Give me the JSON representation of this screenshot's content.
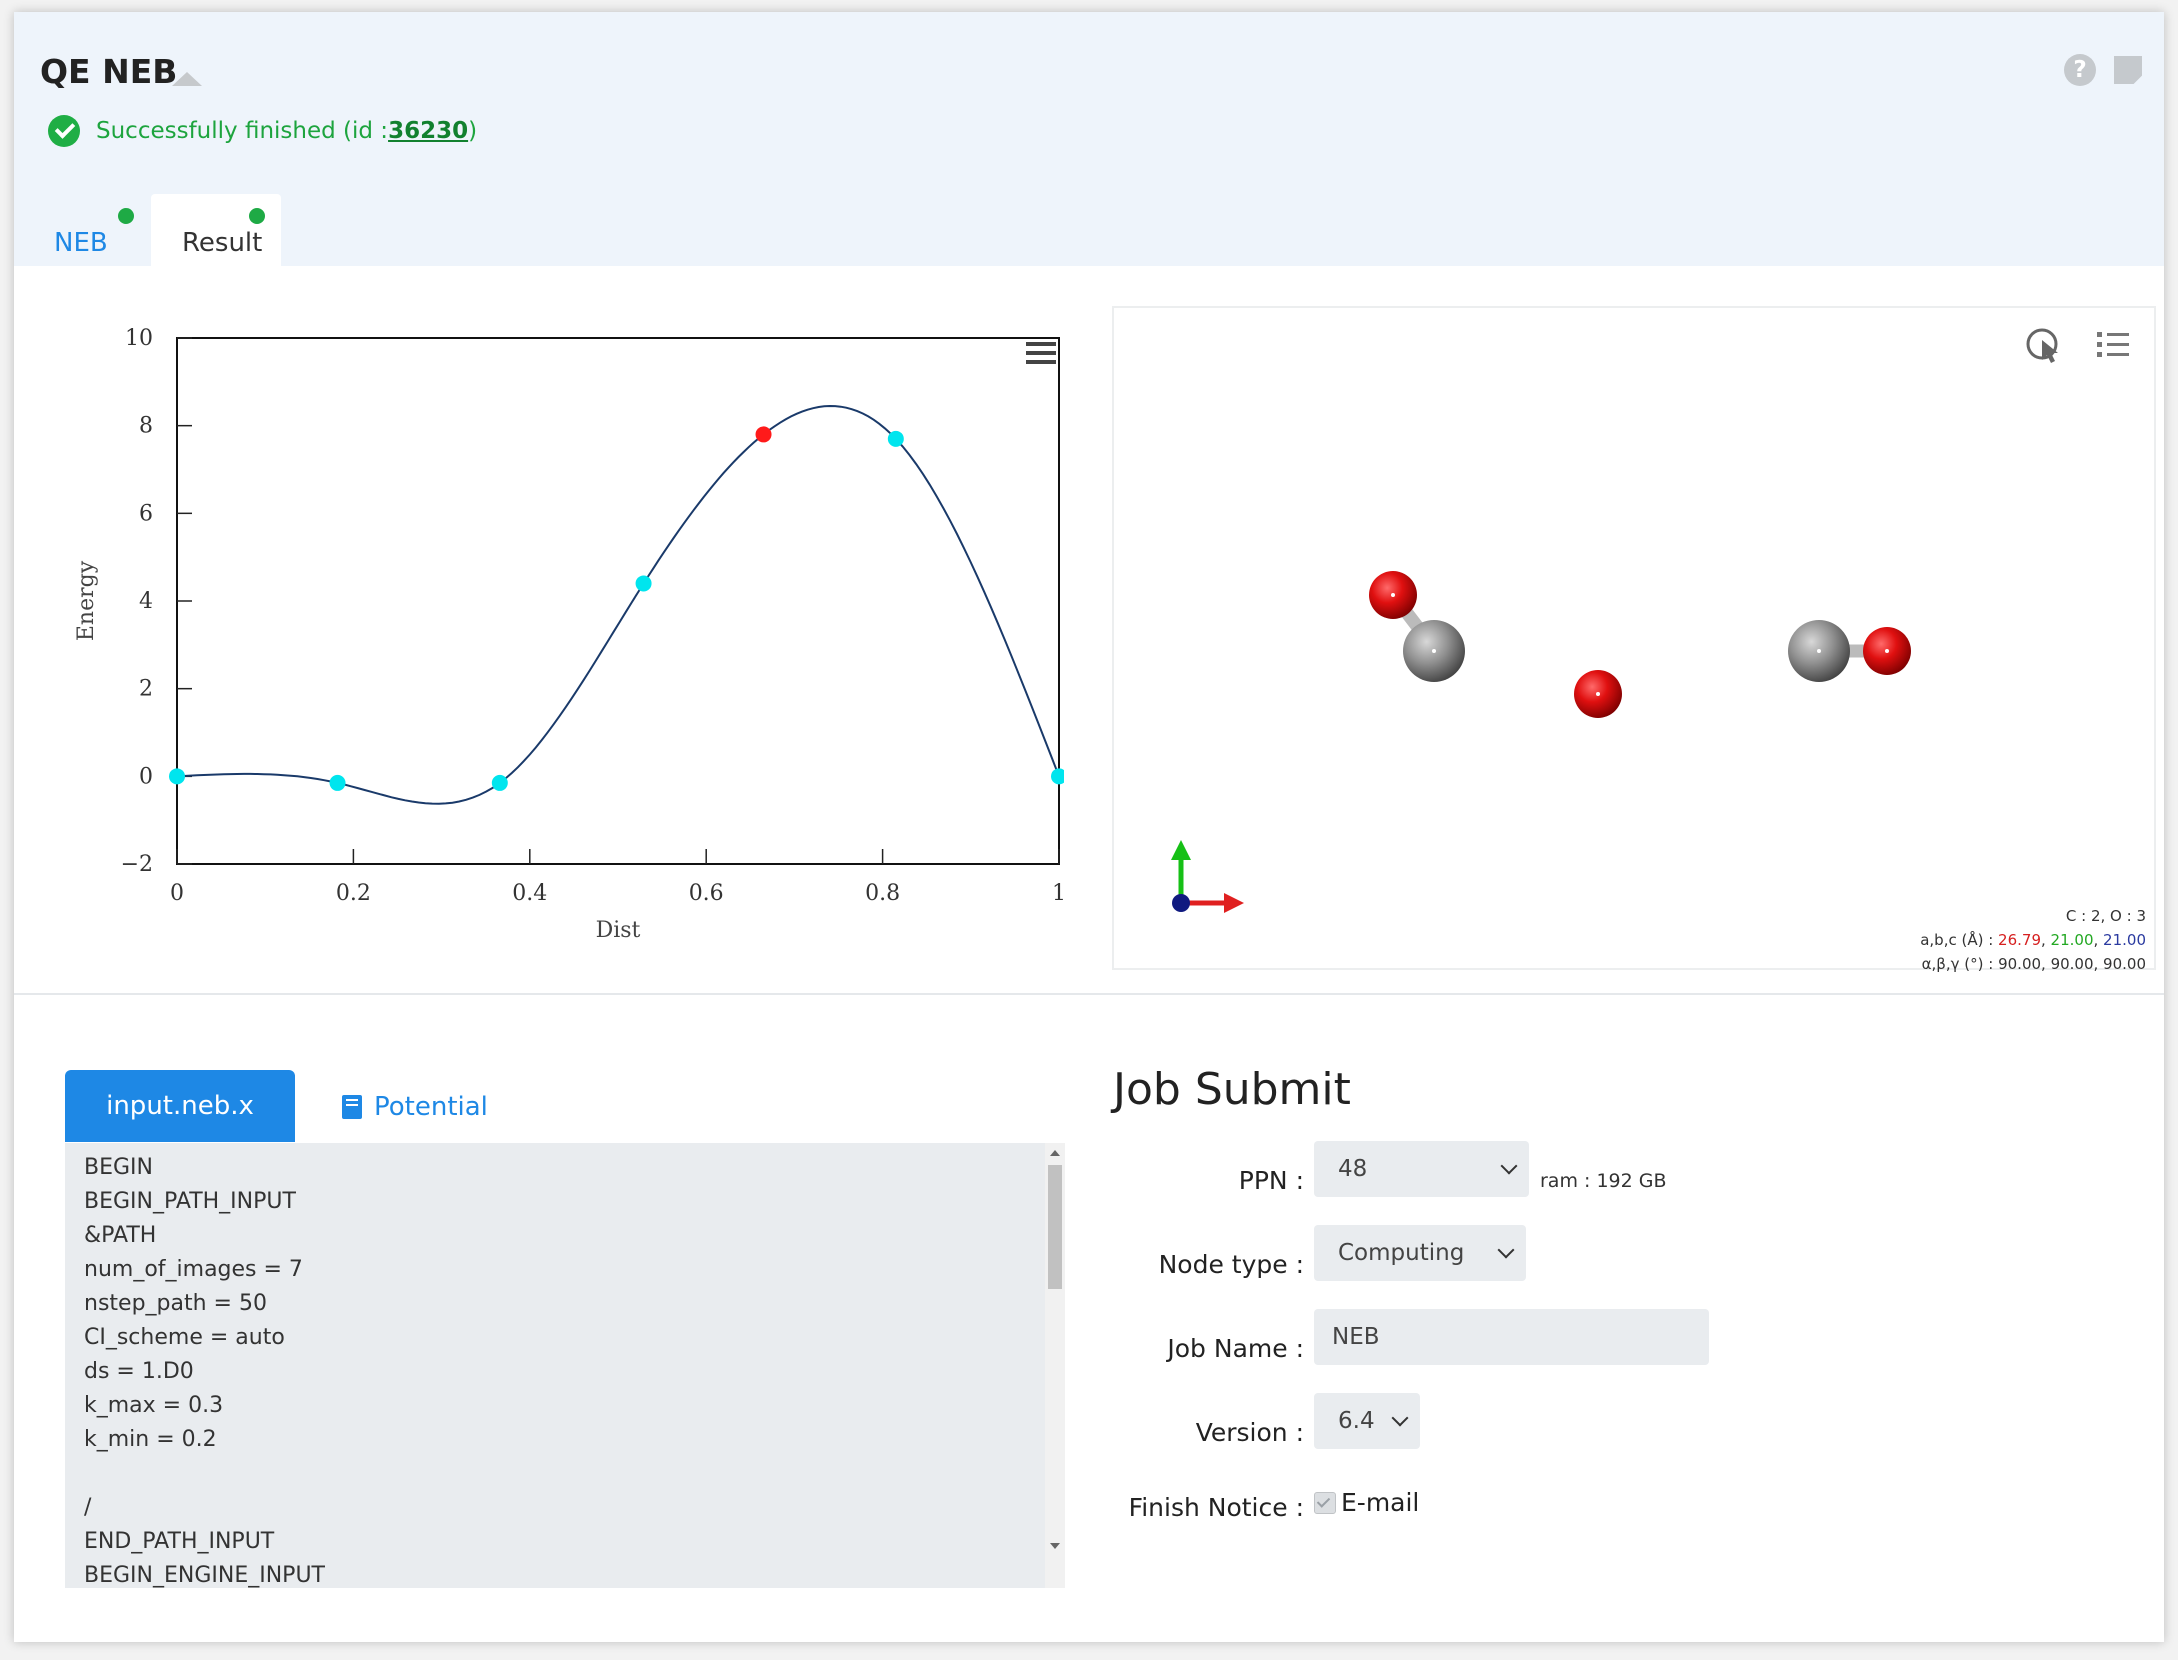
{
  "header": {
    "title": "QE NEB",
    "status_prefix": "Successfully finished (id : ",
    "job_id": "36230",
    "status_suffix": ")",
    "tabs": [
      {
        "label": "NEB"
      },
      {
        "label": "Result"
      }
    ],
    "icons": [
      "help-icon",
      "note-icon",
      "collapse-icon",
      "check-circle-icon"
    ],
    "status_color": "#1fae45",
    "accent": "#1e88e5"
  },
  "chart_data": {
    "type": "line",
    "xlabel": "Dist",
    "ylabel": "Energy",
    "xlim": [
      0,
      1
    ],
    "ylim": [
      -2,
      10
    ],
    "xticks": [
      0,
      0.2,
      0.4,
      0.6,
      0.8,
      1
    ],
    "yticks": [
      -2,
      0,
      2,
      4,
      6,
      8,
      10
    ],
    "xtick_labels": [
      "0",
      "0.2",
      "0.4",
      "0.6",
      "0.8",
      "1"
    ],
    "ytick_labels": [
      "−2",
      "0",
      "2",
      "4",
      "6",
      "8",
      "10"
    ],
    "series": [
      {
        "x": [
          0,
          0.182,
          0.366,
          0.529,
          0.665,
          0.815,
          1
        ],
        "y": [
          0,
          -0.15,
          -0.15,
          4.4,
          7.8,
          7.7,
          0
        ],
        "point_colors": [
          "#00e5ee",
          "#00e5ee",
          "#00e5ee",
          "#00e5ee",
          "#ff1a1a",
          "#00e5ee",
          "#00e5ee"
        ]
      }
    ],
    "line_color": "#1a3a6a",
    "grid": false,
    "menu_icon": "hamburger-menu-icon"
  },
  "viewer": {
    "icons": [
      "pointer-select-icon",
      "list-icon",
      "axes-icon"
    ],
    "composition": "C : 2, O : 3",
    "abc_label": "a,b,c (Å) : ",
    "a": "26.79",
    "b": "21.00",
    "c": "21.00",
    "abc_colors": [
      "#d62020",
      "#23a823",
      "#2a3aa0"
    ],
    "angles": "α,β,γ (°) : 90.00, 90.00, 90.00"
  },
  "editor": {
    "tab_file": "input.neb.x",
    "tab_potential": "Potential",
    "lines": [
      "BEGIN",
      "BEGIN_PATH_INPUT",
      "&PATH",
      "num_of_images = 7",
      "nstep_path = 50",
      "CI_scheme = auto",
      "ds = 1.D0",
      "k_max = 0.3",
      "k_min = 0.2",
      "",
      "/",
      "END_PATH_INPUT",
      "BEGIN_ENGINE_INPUT"
    ]
  },
  "job": {
    "title": "Job Submit",
    "ppn_label": "PPN :",
    "ppn_value": "48",
    "ram": "ram : 192 GB",
    "node_label": "Node type :",
    "node_value": "Computing",
    "name_label": "Job Name :",
    "name_value": "NEB",
    "version_label": "Version :",
    "version_value": "6.4",
    "notice_label": "Finish Notice :",
    "notice_option": "E-mail",
    "notice_checked": true
  }
}
